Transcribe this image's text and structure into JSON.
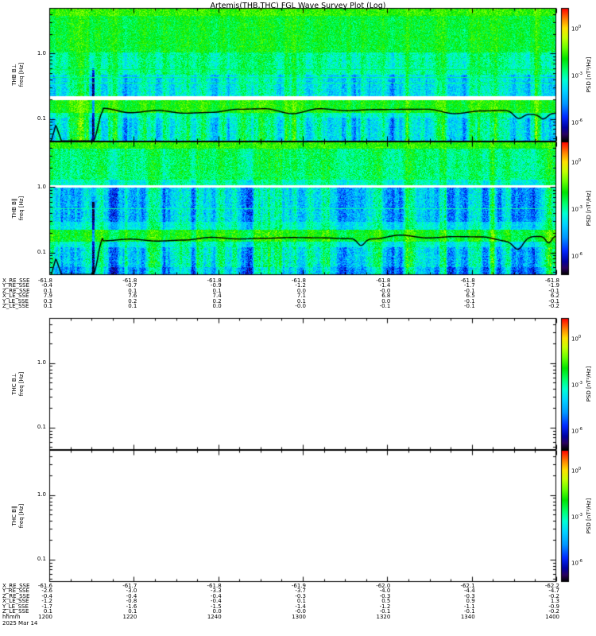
{
  "chart_data": {
    "type": "heatmap",
    "title": "Artemis(THB,THC) FGL Wave Survey Plot (Log)",
    "background": "#ffffff",
    "frame_color": "#000000",
    "trace_color": "#000000",
    "x_axis": {
      "label": "hhmm",
      "ticks": [
        "1200",
        "1220",
        "1240",
        "1300",
        "1320",
        "1340",
        "1400"
      ],
      "date": "2025 Mar 14"
    },
    "freq_axis": {
      "unit": "Hz",
      "min": 0.045,
      "max": 5.0,
      "majors": [
        {
          "f": 1.0,
          "label": "1.0"
        },
        {
          "f": 0.1,
          "label": "0.1"
        }
      ],
      "minors": [
        4,
        3,
        2,
        0.9,
        0.8,
        0.7,
        0.6,
        0.5,
        0.4,
        0.3,
        0.2,
        0.09,
        0.08,
        0.07,
        0.06,
        0.05
      ]
    },
    "colorbar": {
      "label": "PSD [nT²/Hz]",
      "ticks": [
        {
          "exp": "0",
          "frac": 0.15
        },
        {
          "exp": "-3",
          "frac": 0.5
        },
        {
          "exp": "-6",
          "frac": 0.85
        }
      ]
    },
    "colormap_stops": [
      [
        0.0,
        "#000000"
      ],
      [
        0.05,
        "#2a0060"
      ],
      [
        0.1,
        "#0000a0"
      ],
      [
        0.18,
        "#0028ff"
      ],
      [
        0.28,
        "#0096ff"
      ],
      [
        0.38,
        "#00d4ff"
      ],
      [
        0.46,
        "#00ffd4"
      ],
      [
        0.54,
        "#00ff66"
      ],
      [
        0.62,
        "#00e400"
      ],
      [
        0.7,
        "#66ff00"
      ],
      [
        0.78,
        "#c8ff00"
      ],
      [
        0.85,
        "#ffe000"
      ],
      [
        0.92,
        "#ff8000"
      ],
      [
        1.0,
        "#ff0000"
      ]
    ],
    "panels": [
      {
        "name": "THB B-perp spectrogram",
        "ylabel": [
          "THB B⊥",
          "freq [Hz]"
        ],
        "filled": true,
        "seed": 11,
        "plateau": 0.775,
        "trace_start": 0.086,
        "bands": [
          [
            0.0,
            0.055,
            0.66,
            0.07,
            0.1
          ],
          [
            0.055,
            0.33,
            0.595,
            0.085,
            0.18
          ],
          [
            0.33,
            0.5,
            0.515,
            0.095,
            0.35
          ],
          [
            0.5,
            0.655,
            0.43,
            0.105,
            0.55
          ],
          [
            0.655,
            0.69,
            -1,
            0,
            0
          ],
          [
            0.69,
            0.785,
            0.63,
            0.075,
            0.25
          ],
          [
            0.785,
            0.82,
            0.5,
            0.08,
            0.45
          ],
          [
            0.82,
            1.0,
            0.46,
            0.11,
            0.75
          ]
        ],
        "lines": [
          [
            0.46,
            0.55
          ],
          [
            0.515,
            0.53
          ],
          [
            0.56,
            0.52
          ]
        ],
        "dips": [
          [
            0.925,
            0.013,
            0.05
          ],
          [
            0.975,
            0.01,
            0.035
          ]
        ]
      },
      {
        "name": "THB B-parallel spectrogram",
        "ylabel": [
          "THB B∥",
          "freq [Hz]"
        ],
        "filled": true,
        "seed": 29,
        "plateau": 0.725,
        "trace_start": 0.086,
        "bands": [
          [
            0.0,
            0.05,
            0.645,
            0.075,
            0.1
          ],
          [
            0.05,
            0.28,
            0.545,
            0.1,
            0.25
          ],
          [
            0.28,
            0.325,
            0.48,
            0.09,
            0.35
          ],
          [
            0.325,
            0.342,
            -1,
            0,
            0
          ],
          [
            0.342,
            0.6,
            0.385,
            0.12,
            0.65
          ],
          [
            0.6,
            0.66,
            0.45,
            0.09,
            0.45
          ],
          [
            0.66,
            0.748,
            0.615,
            0.08,
            0.3
          ],
          [
            0.748,
            0.79,
            0.48,
            0.085,
            0.45
          ],
          [
            0.79,
            0.935,
            0.43,
            0.12,
            0.75
          ],
          [
            0.935,
            1.0,
            0.36,
            0.11,
            0.8
          ]
        ],
        "lines": [
          [
            0.255,
            0.54
          ],
          [
            0.5,
            0.5
          ]
        ],
        "dips": [
          [
            0.615,
            0.01,
            0.05
          ],
          [
            0.925,
            0.013,
            0.07
          ],
          [
            0.985,
            0.008,
            0.05
          ]
        ]
      },
      {
        "name": "THC B-perp spectrogram (no data)",
        "ylabel": [
          "THC B⊥",
          "freq [Hz]"
        ],
        "filled": false
      },
      {
        "name": "THC B-parallel spectrogram (no data)",
        "ylabel": [
          "THC B∥",
          "freq [Hz]"
        ],
        "filled": false
      }
    ],
    "ephemeris_blocks": [
      {
        "spacecraft": "THB",
        "rows": [
          {
            "label": "X_RE_SSE",
            "values": [
              "-61.8",
              "-61.8",
              "-61.8",
              "-61.8",
              "-61.8",
              "-61.8",
              "-61.8"
            ]
          },
          {
            "label": "Y_RE_SSE",
            "values": [
              "-0.4",
              "-0.7",
              "-0.9",
              "-1.2",
              "-1.4",
              "-1.7",
              "-1.9"
            ]
          },
          {
            "label": "Z_RE_SSE",
            "values": [
              "0.1",
              "0.1",
              "0.1",
              "0.0",
              "-0.0",
              "-0.1",
              "-0.1"
            ]
          },
          {
            "label": "X_LE_SSE",
            "values": [
              "7.9",
              "7.6",
              "7.4",
              "7.1",
              "6.8",
              "6.5",
              "6.2"
            ]
          },
          {
            "label": "Y_LE_SSE",
            "values": [
              "0.3",
              "0.2",
              "0.2",
              "0.1",
              "0.0",
              "-0.1",
              "-0.1"
            ]
          },
          {
            "label": "Z_LE_SSE",
            "values": [
              "0.1",
              "0.1",
              "0.0",
              "-0.0",
              "-0.1",
              "-0.1",
              "-0.2"
            ]
          }
        ]
      },
      {
        "spacecraft": "THC",
        "rows": [
          {
            "label": "X_RE_SSE",
            "values": [
              "-61.6",
              "-61.7",
              "-61.8",
              "-61.9",
              "-62.0",
              "-62.1",
              "-62.2"
            ]
          },
          {
            "label": "Y_RE_SSE",
            "values": [
              "-2.6",
              "-3.0",
              "-3.3",
              "-3.7",
              "-4.0",
              "-4.4",
              "-4.7"
            ]
          },
          {
            "label": "Z_RE_SSE",
            "values": [
              "-0.4",
              "-0.4",
              "-0.4",
              "-0.3",
              "-0.3",
              "-0.3",
              "-0.2"
            ]
          },
          {
            "label": "X_LE_SSE",
            "values": [
              "-1.2",
              "-0.8",
              "-0.4",
              "0.1",
              "0.5",
              "0.9",
              "1.3"
            ]
          },
          {
            "label": "Y_LE_SSE",
            "values": [
              "-1.7",
              "-1.6",
              "-1.5",
              "-1.4",
              "-1.2",
              "-1.1",
              "-0.9"
            ]
          },
          {
            "label": "Z_LE_SSE",
            "values": [
              "0.1",
              "0.1",
              "0.0",
              "-0.0",
              "-0.1",
              "-0.1",
              "-0.2"
            ]
          }
        ]
      }
    ]
  }
}
